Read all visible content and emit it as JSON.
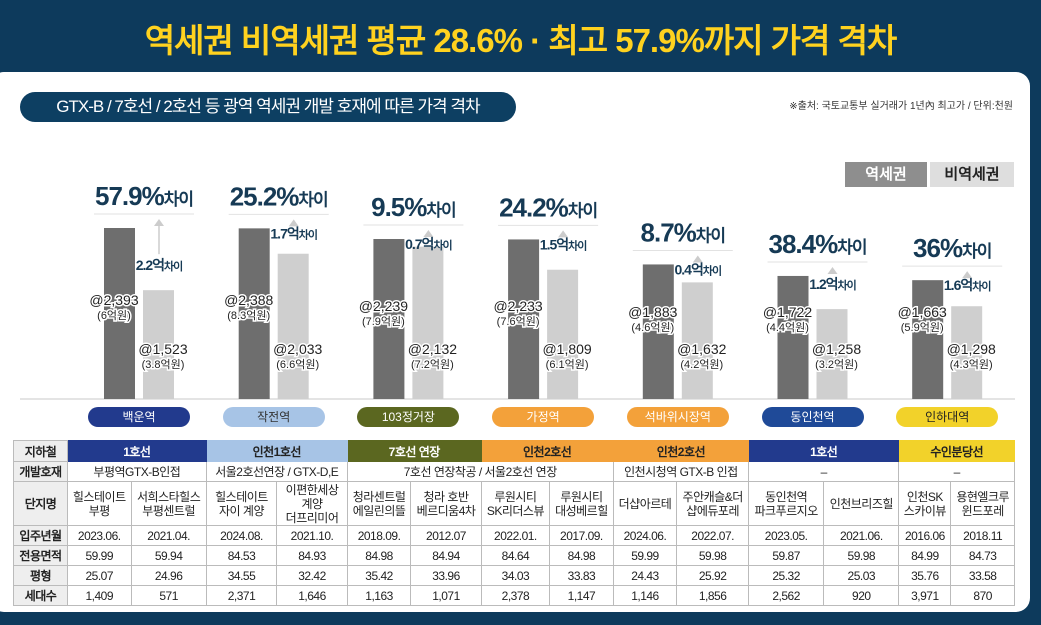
{
  "title": "역세권 비역세권 평균 28.6% · 최고 57.9%까지 가격 격차",
  "subtitle": "GTX-B / 7호선 / 2호선 등 광역 역세권 개발 호재에 따른 가격 격차",
  "source": "※출처: 국토교통부 실거래가 1년內 최고가 / 단위:천원",
  "legend": {
    "station": "역세권",
    "non_station": "비역세권",
    "station_color": "#6e6e6e",
    "non_station_color": "#cfcfcf"
  },
  "chart_data": {
    "type": "bar",
    "series": [
      {
        "name": "역세권",
        "values": [
          2393,
          2388,
          2239,
          2233,
          1883,
          1722,
          1663
        ]
      },
      {
        "name": "비역세권",
        "values": [
          1523,
          2033,
          2132,
          1809,
          1632,
          1258,
          1298
        ]
      }
    ],
    "categories": [
      "백운역",
      "작전역",
      "103정거장",
      "가정역",
      "석바위시장역",
      "동인천역",
      "인하대역"
    ],
    "category_colors": [
      "#223a8d",
      "#a7c4e6",
      "#5b6720",
      "#f3a13a",
      "#f3a13a",
      "#1f4a98",
      "#f2d22a"
    ],
    "category_text_colors": [
      "#fff",
      "#333",
      "#fff",
      "#fff",
      "#fff",
      "#fff",
      "#222"
    ],
    "groups": [
      {
        "pct": "57.9%",
        "pct_suffix": "차이",
        "diff": "2.2억",
        "diff_suffix": "차이",
        "a_label": "@2,393",
        "a_sub": "(6억원)",
        "b_label": "@1,523",
        "b_sub": "(3.8억원)"
      },
      {
        "pct": "25.2%",
        "pct_suffix": "차이",
        "diff": "1.7억",
        "diff_suffix": "차이",
        "a_label": "@2,388",
        "a_sub": "(8.3억원)",
        "b_label": "@2,033",
        "b_sub": "(6.6억원)"
      },
      {
        "pct": "9.5%",
        "pct_suffix": "차이",
        "diff": "0.7억",
        "diff_suffix": "차이",
        "a_label": "@2,239",
        "a_sub": "(7.9억원)",
        "b_label": "@2,132",
        "b_sub": "(7.2억원)"
      },
      {
        "pct": "24.2%",
        "pct_suffix": "차이",
        "diff": "1.5억",
        "diff_suffix": "차이",
        "a_label": "@2,233",
        "a_sub": "(7.6억원)",
        "b_label": "@1,809",
        "b_sub": "(6.1억원)"
      },
      {
        "pct": "8.7%",
        "pct_suffix": "차이",
        "diff": "0.4억",
        "diff_suffix": "차이",
        "a_label": "@1,883",
        "a_sub": "(4.6억원)",
        "b_label": "@1,632",
        "b_sub": "(4.2억원)"
      },
      {
        "pct": "38.4%",
        "pct_suffix": "차이",
        "diff": "1.2억",
        "diff_suffix": "차이",
        "a_label": "@1,722",
        "a_sub": "(4.4억원)",
        "b_label": "@1,258",
        "b_sub": "(3.2억원)"
      },
      {
        "pct": "36%",
        "pct_suffix": "차이",
        "diff": "1.6억",
        "diff_suffix": "차이",
        "a_label": "@1,663",
        "a_sub": "(5.9억원)",
        "b_label": "@1,298",
        "b_sub": "(4.3억원)"
      }
    ],
    "ylim": [
      0,
      2500
    ]
  },
  "table": {
    "row_labels": [
      "지하철",
      "개발호재",
      "단지명",
      "입주년월",
      "전용면적",
      "평형",
      "세대수"
    ],
    "lines": [
      {
        "name": "1호선",
        "color": "#223a8d",
        "text": "#fff"
      },
      {
        "name": "인천1호선",
        "color": "#a7c4e6",
        "text": "#222"
      },
      {
        "name": "7호선 연장",
        "color": "#5b6720",
        "text": "#fff"
      },
      {
        "name": "인천2호선",
        "color": "#f3a13a",
        "text": "#222"
      },
      {
        "name": "인천2호선",
        "color": "#f3a13a",
        "text": "#222"
      },
      {
        "name": "1호선",
        "color": "#223a8d",
        "text": "#fff"
      },
      {
        "name": "수인분당선",
        "color": "#f2d22a",
        "text": "#222"
      }
    ],
    "dev": [
      {
        "text": "부평역GTX-B인접",
        "span": 2
      },
      {
        "text": "서울2호선연장 / GTX-D,E",
        "span": 2
      },
      {
        "text": "7호선 연장착공 / 서울2호선 연장",
        "span": 4
      },
      {
        "text": "인천시청역 GTX-B 인접",
        "span": 2
      },
      {
        "text": "–",
        "span": 2
      },
      {
        "text": "–",
        "span": 2
      }
    ],
    "names": [
      [
        "힐스테이트",
        "부평"
      ],
      [
        "서희스타힐스",
        "부평센트럴"
      ],
      [
        "힐스테이트",
        "자이 계양"
      ],
      [
        "이편한세상",
        "계양",
        "더프리미어"
      ],
      [
        "청라센트럴",
        "에일린의뜰"
      ],
      [
        "청라 호반",
        "베르디움4차"
      ],
      [
        "루원시티",
        "SK리더스뷰"
      ],
      [
        "루원시티",
        "대성베르힐"
      ],
      [
        "더샵아르테"
      ],
      [
        "주안캐슬&더",
        "샵에듀포레"
      ],
      [
        "동인천역",
        "파크푸르지오"
      ],
      [
        "인천브리즈힐"
      ],
      [
        "인천SK",
        "스카이뷰"
      ],
      [
        "용현엘크루",
        "윈드포레"
      ]
    ],
    "dates": [
      "2023.06.",
      "2021.04.",
      "2024.08.",
      "2021.10.",
      "2018.09.",
      "2012.07",
      "2022.01.",
      "2017.09.",
      "2024.06.",
      "2022.07.",
      "2023.05.",
      "2021.06.",
      "2016.06",
      "2018.11"
    ],
    "areas": [
      "59.99",
      "59.94",
      "84.53",
      "84.93",
      "84.98",
      "84.94",
      "84.64",
      "84.98",
      "59.99",
      "59.98",
      "59.87",
      "59.98",
      "84.99",
      "84.73"
    ],
    "pyeong": [
      "25.07",
      "24.96",
      "34.55",
      "32.42",
      "35.42",
      "33.96",
      "34.03",
      "33.83",
      "24.43",
      "25.92",
      "25.32",
      "25.03",
      "35.76",
      "33.58"
    ],
    "households": [
      "1,409",
      "571",
      "2,371",
      "1,646",
      "1,163",
      "1,071",
      "2,378",
      "1,147",
      "1,146",
      "1,856",
      "2,562",
      "920",
      "3,971",
      "870"
    ]
  }
}
